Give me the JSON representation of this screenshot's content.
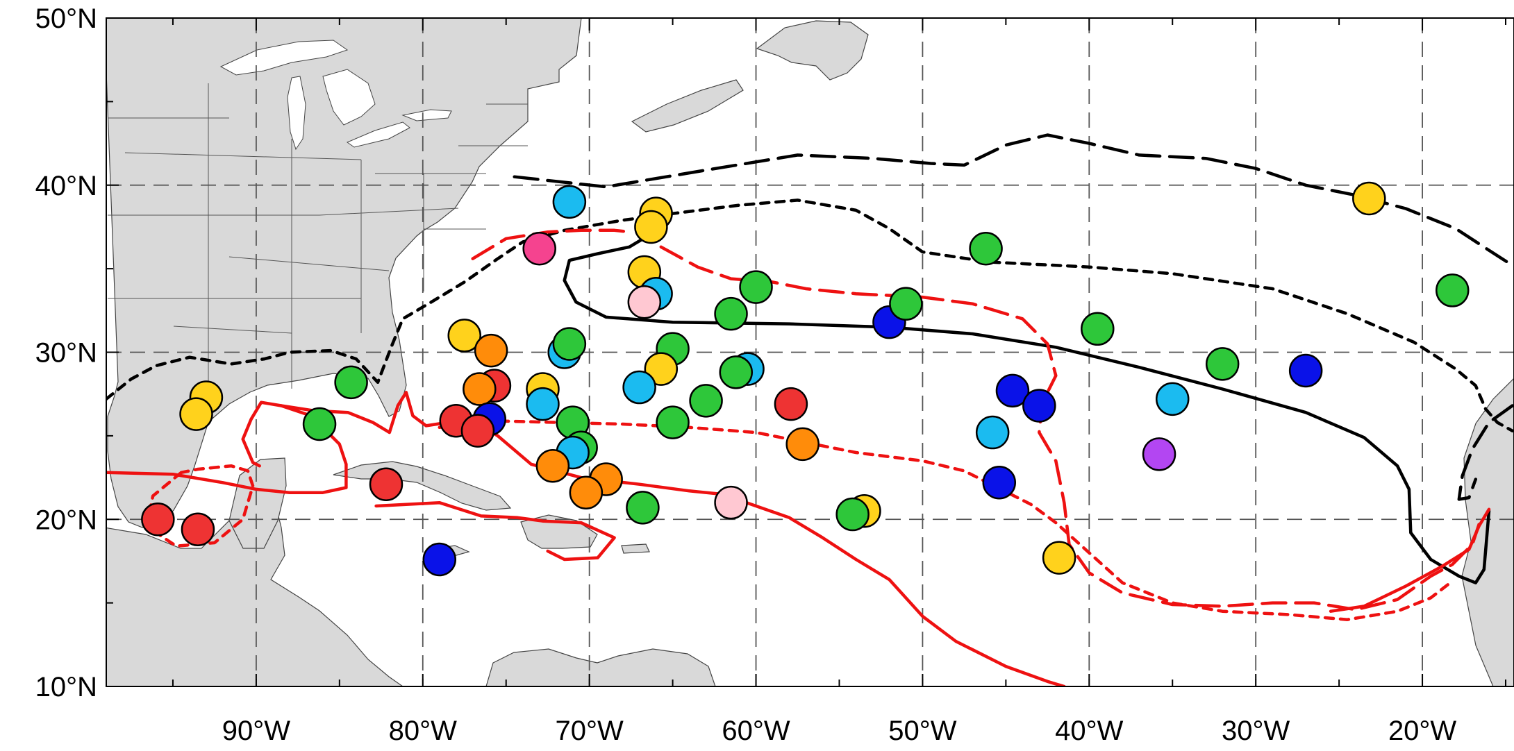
{
  "map": {
    "lon_range": [
      -99,
      -14.5
    ],
    "lat_range": [
      10,
      50
    ],
    "lat_ticks": [
      {
        "value": 50,
        "label": "50°N"
      },
      {
        "value": 40,
        "label": "40°N"
      },
      {
        "value": 30,
        "label": "30°N"
      },
      {
        "value": 20,
        "label": "20°N"
      },
      {
        "value": 10,
        "label": "10°N"
      }
    ],
    "lon_ticks": [
      {
        "value": -90,
        "label": "90°W"
      },
      {
        "value": -80,
        "label": "80°W"
      },
      {
        "value": -70,
        "label": "70°W"
      },
      {
        "value": -60,
        "label": "60°W"
      },
      {
        "value": -50,
        "label": "50°W"
      },
      {
        "value": -40,
        "label": "40°W"
      },
      {
        "value": -30,
        "label": "30°W"
      },
      {
        "value": -20,
        "label": "20°W"
      }
    ],
    "grid": "on",
    "colors": {
      "land": "#d9d9d9",
      "ocean": "#ffffff",
      "contour_black": "#000000",
      "contour_red": "#ee1111"
    }
  },
  "contours": [
    {
      "color": "#000000",
      "style": "solid",
      "points": [
        [
          -66.6,
          36.9
        ],
        [
          -67.6,
          36.3
        ],
        [
          -69.5,
          35.9
        ],
        [
          -71.2,
          35.5
        ],
        [
          -71.5,
          34.3
        ],
        [
          -70.8,
          33.0
        ],
        [
          -69.0,
          32.1
        ],
        [
          -65.0,
          31.8
        ],
        [
          -58.0,
          31.7
        ],
        [
          -52.0,
          31.5
        ],
        [
          -47.0,
          31.1
        ],
        [
          -42.0,
          30.3
        ],
        [
          -37.0,
          29.1
        ],
        [
          -32.0,
          27.8
        ],
        [
          -27.0,
          26.4
        ],
        [
          -23.5,
          24.9
        ],
        [
          -21.5,
          23.2
        ],
        [
          -20.8,
          21.8
        ],
        [
          -20.7,
          19.2
        ],
        [
          -19.5,
          17.6
        ],
        [
          -17.8,
          16.6
        ],
        [
          -16.8,
          16.2
        ],
        [
          -16.3,
          17.0
        ],
        [
          -16.0,
          20.5
        ]
      ]
    },
    {
      "color": "#000000",
      "style": "short-dash",
      "points": [
        [
          -99.0,
          27.2
        ],
        [
          -97.5,
          28.4
        ],
        [
          -96.0,
          29.2
        ],
        [
          -94.0,
          29.7
        ],
        [
          -91.5,
          29.3
        ],
        [
          -89.5,
          29.6
        ],
        [
          -88.0,
          30.0
        ],
        [
          -85.5,
          30.1
        ],
        [
          -84.0,
          29.6
        ],
        [
          -82.7,
          28.2
        ],
        [
          -81.9,
          30.3
        ],
        [
          -81.2,
          32.0
        ],
        [
          -79.5,
          33.0
        ],
        [
          -77.5,
          34.2
        ],
        [
          -75.5,
          35.6
        ],
        [
          -74.0,
          36.6
        ],
        [
          -71.5,
          37.3
        ],
        [
          -68.0,
          37.9
        ],
        [
          -65.0,
          38.3
        ],
        [
          -61.0,
          38.8
        ],
        [
          -57.5,
          39.1
        ],
        [
          -54.0,
          38.5
        ],
        [
          -52.0,
          37.4
        ],
        [
          -50.0,
          36.0
        ],
        [
          -46.0,
          35.4
        ],
        [
          -40.0,
          35.1
        ],
        [
          -35.0,
          34.7
        ],
        [
          -29.0,
          33.8
        ],
        [
          -24.5,
          32.3
        ],
        [
          -20.5,
          30.6
        ],
        [
          -18.0,
          29.0
        ],
        [
          -16.8,
          28.0
        ],
        [
          -16.2,
          26.6
        ],
        [
          -15.5,
          25.8
        ],
        [
          -14.6,
          25.3
        ]
      ]
    },
    {
      "color": "#000000",
      "style": "long-dash",
      "points": [
        [
          -74.5,
          40.5
        ],
        [
          -69.0,
          39.9
        ],
        [
          -63.0,
          40.9
        ],
        [
          -57.5,
          41.8
        ],
        [
          -53.0,
          41.6
        ],
        [
          -49.5,
          41.3
        ],
        [
          -47.5,
          41.2
        ],
        [
          -45.0,
          42.4
        ],
        [
          -42.5,
          43.0
        ],
        [
          -40.0,
          42.5
        ],
        [
          -37.0,
          41.8
        ],
        [
          -33.0,
          41.6
        ],
        [
          -30.0,
          41.0
        ],
        [
          -27.0,
          40.0
        ],
        [
          -24.0,
          39.4
        ],
        [
          -21.0,
          38.6
        ],
        [
          -18.0,
          37.4
        ],
        [
          -16.0,
          36.1
        ],
        [
          -14.6,
          35.2
        ]
      ]
    },
    {
      "color": "#000000",
      "style": "long-dash",
      "points": [
        [
          -14.6,
          26.8
        ],
        [
          -16.0,
          25.8
        ],
        [
          -17.0,
          24.2
        ],
        [
          -17.6,
          22.6
        ],
        [
          -17.8,
          21.2
        ],
        [
          -17.2,
          21.3
        ],
        [
          -16.8,
          22.4
        ]
      ]
    },
    {
      "color": "#ee1111",
      "style": "solid",
      "points": [
        [
          -99.0,
          22.8
        ],
        [
          -95.0,
          22.7
        ],
        [
          -92.0,
          22.2
        ],
        [
          -90.0,
          21.8
        ],
        [
          -88.0,
          21.6
        ],
        [
          -86.0,
          21.6
        ],
        [
          -84.6,
          21.9
        ],
        [
          -84.6,
          23.3
        ],
        [
          -85.0,
          24.5
        ],
        [
          -86.0,
          25.5
        ],
        [
          -87.0,
          26.3
        ],
        [
          -88.5,
          26.8
        ],
        [
          -89.7,
          27.0
        ],
        [
          -90.3,
          26.0
        ],
        [
          -90.8,
          24.8
        ],
        [
          -90.2,
          23.4
        ],
        [
          -89.8,
          23.2
        ]
      ]
    },
    {
      "color": "#ee1111",
      "style": "solid",
      "points": [
        [
          -88.5,
          26.8
        ],
        [
          -86.5,
          26.5
        ],
        [
          -84.5,
          26.4
        ],
        [
          -83.0,
          25.8
        ],
        [
          -82.0,
          25.2
        ],
        [
          -81.5,
          26.8
        ],
        [
          -81.0,
          27.6
        ],
        [
          -80.6,
          26.2
        ],
        [
          -79.8,
          25.6
        ],
        [
          -78.5,
          25.8
        ],
        [
          -77.0,
          25.9
        ],
        [
          -75.5,
          25.0
        ],
        [
          -73.5,
          23.3
        ],
        [
          -70.5,
          22.5
        ],
        [
          -67.0,
          22.1
        ],
        [
          -64.0,
          21.7
        ],
        [
          -62.0,
          21.5
        ],
        [
          -60.0,
          20.8
        ],
        [
          -58.0,
          20.1
        ],
        [
          -56.0,
          18.9
        ],
        [
          -54.0,
          17.6
        ],
        [
          -52.0,
          16.4
        ],
        [
          -50.0,
          14.2
        ],
        [
          -48.0,
          12.7
        ],
        [
          -45.0,
          11.2
        ],
        [
          -42.5,
          10.3
        ],
        [
          -41.5,
          10.0
        ]
      ]
    },
    {
      "color": "#ee1111",
      "style": "solid",
      "points": [
        [
          -82.8,
          20.8
        ],
        [
          -79.0,
          21.0
        ],
        [
          -76.5,
          20.2
        ],
        [
          -74.3,
          20.1
        ],
        [
          -72.8,
          19.9
        ],
        [
          -70.5,
          19.8
        ],
        [
          -68.5,
          18.9
        ],
        [
          -69.5,
          17.7
        ],
        [
          -71.5,
          17.6
        ],
        [
          -72.5,
          18.1
        ]
      ]
    },
    {
      "color": "#ee1111",
      "style": "solid",
      "points": [
        [
          -16.0,
          20.6
        ],
        [
          -16.6,
          19.6
        ],
        [
          -17.2,
          18.2
        ],
        [
          -18.8,
          17.2
        ],
        [
          -21.0,
          16.0
        ],
        [
          -23.5,
          14.8
        ],
        [
          -25.5,
          14.5
        ]
      ]
    },
    {
      "color": "#ee1111",
      "style": "long-dash",
      "points": [
        [
          -77.0,
          35.6
        ],
        [
          -75.0,
          36.8
        ],
        [
          -72.5,
          37.2
        ],
        [
          -70.5,
          37.3
        ],
        [
          -68.5,
          37.3
        ],
        [
          -67.6,
          37.2
        ]
      ]
    },
    {
      "color": "#ee1111",
      "style": "long-dash",
      "points": [
        [
          -65.7,
          36.3
        ],
        [
          -63.5,
          35.1
        ],
        [
          -61.5,
          34.4
        ],
        [
          -59.0,
          34.2
        ],
        [
          -57.0,
          33.8
        ],
        [
          -54.0,
          33.5
        ],
        [
          -50.0,
          33.3
        ],
        [
          -47.0,
          32.9
        ],
        [
          -44.0,
          32.0
        ],
        [
          -42.5,
          30.5
        ],
        [
          -42.0,
          28.6
        ],
        [
          -42.8,
          27.0
        ],
        [
          -43.0,
          25.2
        ],
        [
          -42.0,
          23.5
        ],
        [
          -41.5,
          21.0
        ],
        [
          -41.2,
          18.5
        ],
        [
          -40.0,
          16.8
        ],
        [
          -38.0,
          15.6
        ],
        [
          -35.0,
          14.9
        ],
        [
          -32.0,
          14.8
        ],
        [
          -29.0,
          15.0
        ],
        [
          -26.5,
          15.0
        ],
        [
          -24.0,
          14.6
        ],
        [
          -21.5,
          15.2
        ],
        [
          -19.5,
          16.6
        ],
        [
          -18.2,
          17.3
        ],
        [
          -17.0,
          18.5
        ],
        [
          -16.6,
          19.7
        ]
      ]
    },
    {
      "color": "#ee1111",
      "style": "short-dash",
      "points": [
        [
          -79.0,
          25.5
        ],
        [
          -76.0,
          25.9
        ],
        [
          -72.0,
          25.8
        ],
        [
          -68.0,
          25.7
        ],
        [
          -64.0,
          25.5
        ],
        [
          -60.0,
          25.2
        ],
        [
          -57.0,
          24.6
        ],
        [
          -54.0,
          24.0
        ],
        [
          -50.0,
          23.5
        ],
        [
          -47.5,
          22.9
        ],
        [
          -45.5,
          21.9
        ],
        [
          -43.5,
          20.9
        ],
        [
          -42.0,
          19.8
        ],
        [
          -40.0,
          18.0
        ],
        [
          -38.0,
          16.2
        ],
        [
          -35.0,
          15.0
        ],
        [
          -32.0,
          14.5
        ],
        [
          -28.0,
          14.3
        ],
        [
          -24.5,
          14.0
        ],
        [
          -21.5,
          14.5
        ],
        [
          -19.5,
          15.3
        ],
        [
          -18.2,
          16.3
        ]
      ]
    },
    {
      "color": "#ee1111",
      "style": "short-dash",
      "points": [
        [
          -94.5,
          22.8
        ],
        [
          -96.2,
          21.4
        ],
        [
          -96.6,
          19.6
        ],
        [
          -94.8,
          18.4
        ],
        [
          -92.5,
          18.6
        ],
        [
          -90.8,
          20.0
        ],
        [
          -90.2,
          22.0
        ],
        [
          -90.5,
          22.9
        ],
        [
          -91.5,
          23.2
        ],
        [
          -93.5,
          23.0
        ],
        [
          -94.5,
          22.8
        ]
      ]
    }
  ],
  "storms": [
    {
      "lon": -71.2,
      "lat": 39.0,
      "color": "#1bbbf0"
    },
    {
      "lon": -66.0,
      "lat": 38.3,
      "color": "#ffd21c"
    },
    {
      "lon": -66.3,
      "lat": 37.5,
      "color": "#ffd21c"
    },
    {
      "lon": -73.0,
      "lat": 36.2,
      "color": "#f5438f"
    },
    {
      "lon": -66.7,
      "lat": 34.8,
      "color": "#ffd21c"
    },
    {
      "lon": -66.0,
      "lat": 33.5,
      "color": "#1bbbf0"
    },
    {
      "lon": -66.7,
      "lat": 33.0,
      "color": "#ffc8d2"
    },
    {
      "lon": -60.0,
      "lat": 33.9,
      "color": "#2ec73a"
    },
    {
      "lon": -61.5,
      "lat": 32.3,
      "color": "#2ec73a"
    },
    {
      "lon": -52.0,
      "lat": 31.8,
      "color": "#0a12e8"
    },
    {
      "lon": -51.0,
      "lat": 32.9,
      "color": "#2ec73a"
    },
    {
      "lon": -46.2,
      "lat": 36.2,
      "color": "#2ec73a"
    },
    {
      "lon": -39.5,
      "lat": 31.4,
      "color": "#2ec73a"
    },
    {
      "lon": -23.2,
      "lat": 39.2,
      "color": "#ffd21c"
    },
    {
      "lon": -18.2,
      "lat": 33.7,
      "color": "#2ec73a"
    },
    {
      "lon": -77.5,
      "lat": 31.0,
      "color": "#ffd21c"
    },
    {
      "lon": -75.9,
      "lat": 30.1,
      "color": "#ff8c0a"
    },
    {
      "lon": -71.5,
      "lat": 30.0,
      "color": "#1bbbf0"
    },
    {
      "lon": -71.2,
      "lat": 30.5,
      "color": "#2ec73a"
    },
    {
      "lon": -65.0,
      "lat": 30.2,
      "color": "#2ec73a"
    },
    {
      "lon": -65.7,
      "lat": 29.0,
      "color": "#ffd21c"
    },
    {
      "lon": -60.5,
      "lat": 29.0,
      "color": "#1bbbf0"
    },
    {
      "lon": -61.2,
      "lat": 28.8,
      "color": "#2ec73a"
    },
    {
      "lon": -67.0,
      "lat": 27.9,
      "color": "#1bbbf0"
    },
    {
      "lon": -63.0,
      "lat": 27.1,
      "color": "#2ec73a"
    },
    {
      "lon": -57.9,
      "lat": 26.9,
      "color": "#ee3333"
    },
    {
      "lon": -75.7,
      "lat": 28.0,
      "color": "#ee3333"
    },
    {
      "lon": -76.6,
      "lat": 27.8,
      "color": "#ff8c0a"
    },
    {
      "lon": -72.8,
      "lat": 27.8,
      "color": "#ffd21c"
    },
    {
      "lon": -72.8,
      "lat": 26.9,
      "color": "#1bbbf0"
    },
    {
      "lon": -76.0,
      "lat": 26.0,
      "color": "#0a12e8"
    },
    {
      "lon": -78.0,
      "lat": 25.9,
      "color": "#ee3333"
    },
    {
      "lon": -76.7,
      "lat": 25.3,
      "color": "#ee3333"
    },
    {
      "lon": -71.0,
      "lat": 25.8,
      "color": "#2ec73a"
    },
    {
      "lon": -65.0,
      "lat": 25.8,
      "color": "#2ec73a"
    },
    {
      "lon": -57.2,
      "lat": 24.5,
      "color": "#ff8c0a"
    },
    {
      "lon": -70.5,
      "lat": 24.3,
      "color": "#2ec73a"
    },
    {
      "lon": -71.0,
      "lat": 24.0,
      "color": "#1bbbf0"
    },
    {
      "lon": -72.2,
      "lat": 23.2,
      "color": "#ff8c0a"
    },
    {
      "lon": -69.0,
      "lat": 22.4,
      "color": "#ff8c0a"
    },
    {
      "lon": -70.2,
      "lat": 21.6,
      "color": "#ff8c0a"
    },
    {
      "lon": -66.8,
      "lat": 20.7,
      "color": "#2ec73a"
    },
    {
      "lon": -61.5,
      "lat": 21.0,
      "color": "#ffc8d2"
    },
    {
      "lon": -53.5,
      "lat": 20.5,
      "color": "#ffd21c"
    },
    {
      "lon": -54.2,
      "lat": 20.3,
      "color": "#2ec73a"
    },
    {
      "lon": -44.6,
      "lat": 27.7,
      "color": "#0a12e8"
    },
    {
      "lon": -43.0,
      "lat": 26.8,
      "color": "#0a12e8"
    },
    {
      "lon": -45.8,
      "lat": 25.2,
      "color": "#1bbbf0"
    },
    {
      "lon": -45.4,
      "lat": 22.2,
      "color": "#0a12e8"
    },
    {
      "lon": -35.0,
      "lat": 27.2,
      "color": "#1bbbf0"
    },
    {
      "lon": -32.0,
      "lat": 29.3,
      "color": "#2ec73a"
    },
    {
      "lon": -27.0,
      "lat": 28.9,
      "color": "#0a12e8"
    },
    {
      "lon": -35.8,
      "lat": 23.9,
      "color": "#b346f2"
    },
    {
      "lon": -41.8,
      "lat": 17.7,
      "color": "#ffd21c"
    },
    {
      "lon": -84.3,
      "lat": 28.2,
      "color": "#2ec73a"
    },
    {
      "lon": -86.2,
      "lat": 25.7,
      "color": "#2ec73a"
    },
    {
      "lon": -93.0,
      "lat": 27.3,
      "color": "#ffd21c"
    },
    {
      "lon": -93.6,
      "lat": 26.3,
      "color": "#ffd21c"
    },
    {
      "lon": -82.2,
      "lat": 22.1,
      "color": "#ee3333"
    },
    {
      "lon": -95.9,
      "lat": 20.0,
      "color": "#ee3333"
    },
    {
      "lon": -93.5,
      "lat": 19.4,
      "color": "#ee3333"
    },
    {
      "lon": -79.0,
      "lat": 17.6,
      "color": "#0a12e8"
    }
  ]
}
